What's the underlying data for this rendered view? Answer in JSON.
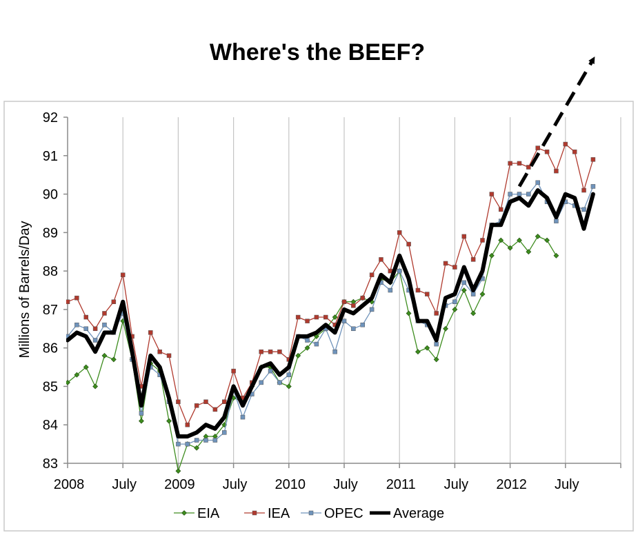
{
  "chart_data": {
    "type": "line",
    "title": "Where's the BEEF?",
    "ylabel": "Millions of Barrels/Day",
    "xlabel": "",
    "ylim": [
      83,
      92
    ],
    "yticks": [
      83,
      84,
      85,
      86,
      87,
      88,
      89,
      90,
      91,
      92
    ],
    "xlim": [
      "2008-01",
      "2012-12"
    ],
    "xticks": [
      {
        "label": "2008",
        "x": "2008-01"
      },
      {
        "label": "July",
        "x": "2008-07"
      },
      {
        "label": "2009",
        "x": "2009-01"
      },
      {
        "label": "July",
        "x": "2009-07"
      },
      {
        "label": "2010",
        "x": "2010-01"
      },
      {
        "label": "July",
        "x": "2010-07"
      },
      {
        "label": "2011",
        "x": "2011-01"
      },
      {
        "label": "July",
        "x": "2011-07"
      },
      {
        "label": "2012",
        "x": "2012-01"
      },
      {
        "label": "July",
        "x": "2012-07"
      }
    ],
    "grid": "vertical",
    "legend": "bottom",
    "start": "2008-01",
    "series": [
      {
        "name": "EIA",
        "color": "#3d8c1e",
        "marker": "diamond",
        "values": [
          85.1,
          85.3,
          85.5,
          85.0,
          85.8,
          85.7,
          86.7,
          85.7,
          84.1,
          85.6,
          85.4,
          84.1,
          82.8,
          83.5,
          83.4,
          83.7,
          83.7,
          84.0,
          84.7,
          84.6,
          85.0,
          85.5,
          85.5,
          85.1,
          85.0,
          85.8,
          86.0,
          86.3,
          86.5,
          86.8,
          87.2,
          87.2,
          87.3,
          87.2,
          87.8,
          87.7,
          88.0,
          86.9,
          85.9,
          86.0,
          85.7,
          86.5,
          87.0,
          87.5,
          86.9,
          87.4,
          88.4,
          88.8,
          88.6,
          88.8,
          88.5,
          88.9,
          88.8,
          88.4
        ]
      },
      {
        "name": "IEA",
        "color": "#b03a2e",
        "marker": "square",
        "values": [
          87.2,
          87.3,
          86.8,
          86.5,
          86.9,
          87.2,
          87.9,
          86.3,
          85.0,
          86.4,
          85.9,
          85.8,
          84.6,
          84.0,
          84.5,
          84.6,
          84.4,
          84.6,
          85.4,
          84.7,
          85.1,
          85.9,
          85.9,
          85.9,
          85.7,
          86.8,
          86.7,
          86.8,
          86.8,
          86.6,
          87.2,
          87.1,
          87.3,
          87.9,
          88.3,
          88.0,
          89.0,
          88.7,
          87.5,
          87.4,
          86.9,
          88.2,
          88.1,
          88.9,
          88.3,
          88.8,
          90.0,
          89.6,
          90.8,
          90.8,
          90.7,
          91.2,
          91.1,
          90.6,
          91.3,
          91.1,
          90.1,
          90.9
        ]
      },
      {
        "name": "OPEC",
        "color": "#6f93bb",
        "marker": "square",
        "values": [
          86.3,
          86.6,
          86.5,
          86.2,
          86.6,
          86.4,
          86.9,
          85.7,
          84.3,
          85.5,
          85.3,
          84.6,
          83.5,
          83.5,
          83.6,
          83.6,
          83.6,
          83.8,
          84.9,
          84.2,
          84.8,
          85.1,
          85.4,
          85.1,
          85.3,
          86.3,
          86.2,
          86.1,
          86.5,
          85.9,
          86.7,
          86.5,
          86.6,
          87.0,
          87.7,
          87.5,
          88.0,
          87.5,
          86.7,
          86.6,
          86.1,
          87.1,
          87.2,
          87.7,
          87.4,
          87.8,
          89.2,
          89.3,
          90.0,
          90.0,
          90.0,
          90.3,
          89.8,
          89.3,
          89.8,
          89.7,
          89.6,
          90.2
        ]
      },
      {
        "name": "Average",
        "color": "#000000",
        "marker": "none",
        "values": [
          86.2,
          86.4,
          86.3,
          85.9,
          86.4,
          86.4,
          87.2,
          85.9,
          84.5,
          85.8,
          85.5,
          84.7,
          83.7,
          83.7,
          83.8,
          84.0,
          83.9,
          84.2,
          85.0,
          84.5,
          85.0,
          85.5,
          85.6,
          85.3,
          85.5,
          86.3,
          86.3,
          86.4,
          86.6,
          86.4,
          87.0,
          86.9,
          87.1,
          87.3,
          87.9,
          87.7,
          88.4,
          87.8,
          86.7,
          86.7,
          86.2,
          87.3,
          87.4,
          88.1,
          87.5,
          88.0,
          89.2,
          89.2,
          89.8,
          89.9,
          89.7,
          90.1,
          89.9,
          89.4,
          90.0,
          89.9,
          89.1,
          90.0
        ]
      }
    ],
    "annotations": [
      {
        "type": "dashed-arrow",
        "from": {
          "x": "2012-02",
          "y": 90.2
        },
        "to": {
          "x": "2012-10",
          "y": 93.5
        }
      }
    ]
  }
}
